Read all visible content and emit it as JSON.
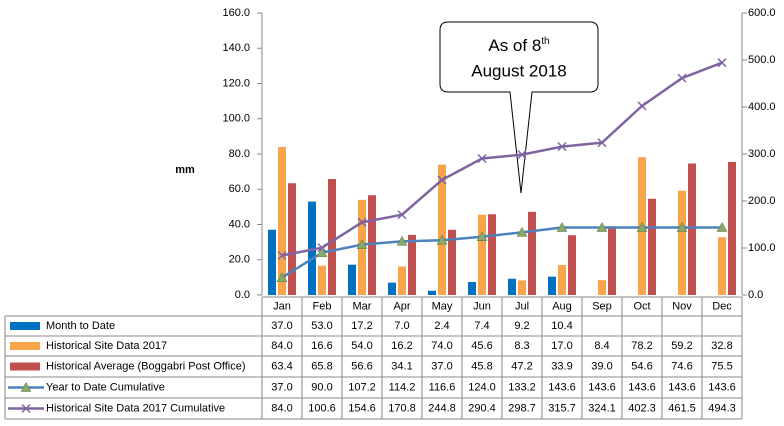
{
  "chart_data": {
    "type": "bar-line-table",
    "y_label": "mm",
    "categories": [
      "Jan",
      "Feb",
      "Mar",
      "Apr",
      "May",
      "Jun",
      "Jul",
      "Aug",
      "Sep",
      "Oct",
      "Nov",
      "Dec"
    ],
    "ylim": [
      0,
      160
    ],
    "yticks": [
      {
        "value": 0,
        "label": "0.0"
      },
      {
        "value": 20,
        "label": "20.0"
      },
      {
        "value": 40,
        "label": "40.0"
      },
      {
        "value": 60,
        "label": "60.0"
      },
      {
        "value": 80,
        "label": "80.0"
      },
      {
        "value": 100,
        "label": "100.0"
      },
      {
        "value": 120,
        "label": "120.0"
      },
      {
        "value": 140,
        "label": "140.0"
      },
      {
        "value": 160,
        "label": "160.0"
      }
    ],
    "y2lim": [
      0,
      600
    ],
    "y2ticks": [
      {
        "value": 0,
        "label": "0.0"
      },
      {
        "value": 100,
        "label": "100.0"
      },
      {
        "value": 200,
        "label": "200.0"
      },
      {
        "value": 300,
        "label": "300.0"
      },
      {
        "value": 400,
        "label": "400.0"
      },
      {
        "value": 500,
        "label": "500.0"
      },
      {
        "value": 600,
        "label": "600.0"
      }
    ],
    "annotation": {
      "prefix": "As of 8",
      "sup": "th",
      "line2": "August 2018"
    },
    "series": [
      {
        "name": "Month to Date",
        "kind": "bar",
        "color": "#0070c0",
        "values": [
          37.0,
          53.0,
          17.2,
          7.0,
          2.4,
          7.4,
          9.2,
          10.4,
          null,
          null,
          null,
          null
        ],
        "value_labels": [
          "37.0",
          "53.0",
          "17.2",
          "7.0",
          "2.4",
          "7.4",
          "9.2",
          "10.4",
          null,
          null,
          null,
          null
        ]
      },
      {
        "name": "Historical Site Data 2017",
        "kind": "bar",
        "color": "#f9a34b",
        "values": [
          84.0,
          16.6,
          54.0,
          16.2,
          74.0,
          45.6,
          8.3,
          17.0,
          8.4,
          78.2,
          59.2,
          32.8
        ],
        "value_labels": [
          "84.0",
          "16.6",
          "54.0",
          "16.2",
          "74.0",
          "45.6",
          "8.3",
          "17.0",
          "8.4",
          "78.2",
          "59.2",
          "32.8"
        ]
      },
      {
        "name": "Historical Average (Boggabri Post Office)",
        "kind": "bar",
        "color": "#c0504d",
        "values": [
          63.4,
          65.8,
          56.6,
          34.1,
          37.0,
          45.8,
          47.2,
          33.9,
          39.0,
          54.6,
          74.6,
          75.5
        ],
        "value_labels": [
          "63.4",
          "65.8",
          "56.6",
          "34.1",
          "37.0",
          "45.8",
          "47.2",
          "33.9",
          "39.0",
          "54.6",
          "74.6",
          "75.5"
        ]
      },
      {
        "name": "Year to Date Cumulative",
        "kind": "line",
        "marker": "triangle",
        "axis": "y2",
        "color": "#4f81bd",
        "values": [
          37.0,
          90.0,
          107.2,
          114.2,
          116.6,
          124.0,
          133.2,
          143.6,
          143.6,
          143.6,
          143.6,
          143.6
        ],
        "value_labels": [
          "37.0",
          "90.0",
          "107.2",
          "114.2",
          "116.6",
          "124.0",
          "133.2",
          "143.6",
          "143.6",
          "143.6",
          "143.6",
          "143.6"
        ]
      },
      {
        "name": "Historical Site Data 2017 Cumulative",
        "kind": "line",
        "marker": "x",
        "axis": "y2",
        "color": "#8064a2",
        "values": [
          84.0,
          100.6,
          154.6,
          170.8,
          244.8,
          290.4,
          298.7,
          315.7,
          324.1,
          402.3,
          461.5,
          494.3
        ],
        "value_labels": [
          "84.0",
          "100.6",
          "154.6",
          "170.8",
          "244.8",
          "290.4",
          "298.7",
          "315.7",
          "324.1",
          "402.3",
          "461.5",
          "494.3"
        ]
      }
    ]
  }
}
